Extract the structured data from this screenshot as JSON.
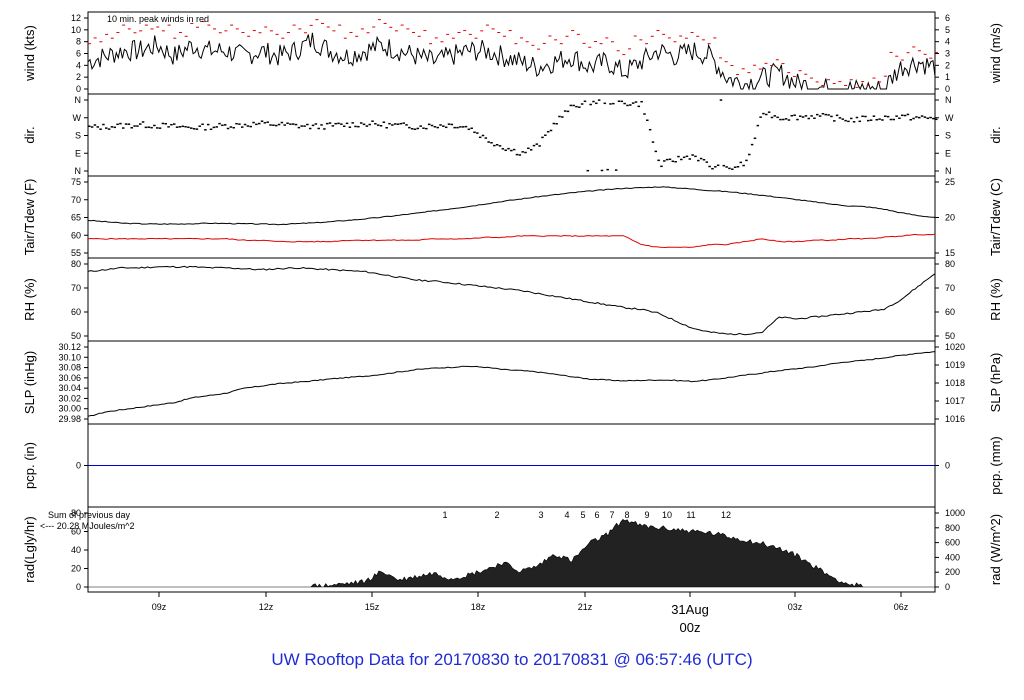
{
  "title": "UW Rooftop Data for 20170830  to  20170831 @ 06:57:46  (UTC)",
  "colors": {
    "peak": "#e00000",
    "dew": "#e00000",
    "pcp": "#0000cc",
    "rad_note": "#a020c0",
    "date": "#e00000",
    "title": "#1f2bd6"
  },
  "x_axis": {
    "ticks": [
      "09z",
      "12z",
      "15z",
      "18z",
      "21z",
      "03z",
      "06z"
    ],
    "date_label": "31Aug",
    "midnight_label": "00z"
  },
  "chart_data": [
    {
      "type": "line",
      "panel": "wind",
      "ylabel_left": "wind (kts)",
      "ylabel_right": "wind (m/s)",
      "yticks_left": [
        "0",
        "2",
        "4",
        "6",
        "8",
        "10",
        "12"
      ],
      "yticks_right": [
        "0",
        "1",
        "2",
        "3",
        "4",
        "5",
        "6"
      ],
      "ylim": [
        0,
        13
      ],
      "annotation": "10 min. peak winds in red",
      "series": [
        {
          "name": "wind",
          "values": [
            5,
            6,
            7,
            7,
            8,
            6,
            8,
            7,
            7,
            6,
            7,
            6,
            7,
            9,
            7,
            6,
            7,
            8,
            7,
            6,
            5,
            6,
            7,
            7,
            6,
            5,
            4,
            5,
            6,
            4,
            5,
            3,
            5,
            7,
            6,
            7,
            6,
            2,
            1,
            2,
            3,
            1,
            0.5,
            0,
            0,
            0,
            0,
            4,
            5,
            4
          ]
        },
        {
          "name": "peak",
          "values": [
            9,
            10,
            11,
            11,
            11,
            10,
            12,
            11,
            11,
            10,
            11,
            10,
            11,
            12,
            11,
            10,
            11,
            12,
            11,
            10,
            9,
            10,
            10,
            11,
            10,
            9,
            8,
            9,
            10,
            8,
            9,
            7,
            9,
            10,
            9,
            10,
            9,
            5,
            3,
            4,
            5,
            3,
            2,
            1,
            1,
            1,
            2,
            6,
            7,
            6
          ]
        }
      ]
    },
    {
      "type": "scatter",
      "panel": "dir",
      "ylabel_left": "dir.",
      "ylabel_right": "dir.",
      "yticks_left": [
        "N",
        "E",
        "S",
        "W",
        "N"
      ],
      "yticks_right": [
        "N",
        "E",
        "S",
        "W",
        "N"
      ],
      "series": [
        {
          "name": "direction",
          "values": [
            220,
            225,
            230,
            235,
            230,
            225,
            220,
            225,
            230,
            235,
            240,
            235,
            230,
            225,
            230,
            235,
            240,
            235,
            230,
            225,
            230,
            235,
            220,
            160,
            120,
            90,
            130,
            250,
            330,
            350,
            355,
            345,
            340,
            30,
            60,
            80,
            20,
            10,
            40,
            300,
            270,
            275,
            280,
            270,
            260,
            265,
            270,
            275,
            270,
            265
          ]
        }
      ]
    },
    {
      "type": "line",
      "panel": "temp",
      "ylabel_left": "Tair/Tdew (F)",
      "ylabel_right": "Tair/Tdew (C)",
      "yticks_left": [
        "55",
        "60",
        "65",
        "70",
        "75"
      ],
      "yticks_right": [
        "15",
        "20",
        "25"
      ],
      "ylim": [
        52,
        77
      ],
      "series": [
        {
          "name": "Tair",
          "values": [
            63.5,
            63,
            62.5,
            62.3,
            62.2,
            62.2,
            62.3,
            62.5,
            62.4,
            62.3,
            62.2,
            62.1,
            62.3,
            62.6,
            63,
            63.5,
            64,
            64.6,
            65.3,
            66,
            66.8,
            67.6,
            68.4,
            69.3,
            70.2,
            71,
            71.8,
            72.5,
            73.2,
            73.8,
            74.3,
            74.8,
            75,
            75.3,
            75,
            74.5,
            74,
            73.6,
            73,
            72.3,
            71.6,
            70.8,
            70,
            69.2,
            68.6,
            68.3,
            67.5,
            66.2,
            65.2,
            64.5
          ]
        },
        {
          "name": "Tdew",
          "values": [
            57,
            57,
            57,
            57,
            57,
            57,
            57,
            57,
            57,
            56.5,
            56.5,
            56,
            56,
            56,
            56,
            56.5,
            56.5,
            56.5,
            56.5,
            56.5,
            57,
            57,
            57,
            57.5,
            57.5,
            58,
            58,
            58,
            58,
            58,
            58,
            58,
            55,
            54,
            54,
            54,
            55,
            55,
            56,
            57,
            56,
            56,
            56.5,
            56.5,
            57,
            57,
            57.5,
            58,
            58.5,
            58.5
          ]
        }
      ]
    },
    {
      "type": "line",
      "panel": "rh",
      "ylabel_left": "RH (%)",
      "ylabel_right": "RH (%)",
      "yticks_left": [
        "50",
        "60",
        "70",
        "80"
      ],
      "yticks_right": [
        "50",
        "60",
        "70",
        "80"
      ],
      "ylim": [
        46,
        84
      ],
      "series": [
        {
          "name": "RH",
          "values": [
            80,
            81,
            82,
            82,
            82.5,
            82.5,
            82.5,
            82,
            82,
            81.5,
            81,
            81.5,
            82,
            81.5,
            81,
            80.5,
            80,
            78.5,
            77,
            75.5,
            75,
            74,
            73,
            72,
            71,
            70,
            68.5,
            67,
            65.5,
            64,
            62.5,
            61,
            60,
            58,
            54,
            50,
            48,
            47,
            47,
            48,
            56,
            55,
            56,
            57,
            58,
            59,
            60,
            65,
            72,
            79
          ]
        }
      ]
    },
    {
      "type": "line",
      "panel": "slp",
      "ylabel_left": "SLP (inHg)",
      "ylabel_right": "SLP (hPa)",
      "yticks_left": [
        "29.98",
        "30.00",
        "30.02",
        "30.04",
        "30.06",
        "30.08",
        "30.10",
        "30.12"
      ],
      "yticks_right": [
        "1016",
        "1017",
        "1018",
        "1019",
        "1020"
      ],
      "ylim": [
        29.975,
        30.128
      ],
      "series": [
        {
          "name": "SLP",
          "values": [
            29.98,
            29.99,
            29.995,
            30.0,
            30.005,
            30.01,
            30.02,
            30.025,
            30.03,
            30.04,
            30.045,
            30.05,
            30.053,
            30.056,
            30.06,
            30.063,
            30.066,
            30.07,
            30.075,
            30.08,
            30.083,
            30.085,
            30.087,
            30.085,
            30.08,
            30.078,
            30.075,
            30.07,
            30.065,
            30.06,
            30.058,
            30.056,
            30.057,
            30.058,
            30.057,
            30.055,
            30.058,
            30.063,
            30.068,
            30.073,
            30.078,
            30.082,
            30.086,
            30.092,
            30.097,
            30.1,
            30.105,
            30.11,
            30.115,
            30.118
          ]
        }
      ]
    },
    {
      "type": "line",
      "panel": "pcp",
      "ylabel_left": "pcp. (in)",
      "ylabel_right": "pcp. (mm)",
      "yticks_left": [
        "0"
      ],
      "yticks_right": [
        "0"
      ],
      "series": [
        {
          "name": "pcp",
          "values": [
            0,
            0
          ]
        }
      ]
    },
    {
      "type": "area",
      "panel": "rad",
      "ylabel_left": "rad(Lgly/hr)",
      "ylabel_right": "rad (W/m^2)",
      "yticks_left": [
        "0",
        "20",
        "40",
        "60",
        "80"
      ],
      "yticks_right": [
        "0",
        "200",
        "400",
        "600",
        "800",
        "1000"
      ],
      "ylim": [
        0,
        85
      ],
      "annotation": [
        "Sum of previous day",
        "<--- 20.28 MJoules/m^2"
      ],
      "hour_markers": [
        "1",
        "2",
        "3",
        "4",
        "5",
        "6",
        "7",
        "8",
        "9",
        "10",
        "11",
        "12"
      ],
      "series": [
        {
          "name": "rad",
          "values": [
            0,
            0,
            0,
            0,
            0,
            0,
            0,
            0,
            0,
            0,
            0,
            0,
            0.5,
            1,
            2,
            4,
            6,
            18,
            8,
            12,
            16,
            10,
            14,
            20,
            28,
            18,
            24,
            38,
            30,
            50,
            60,
            78,
            70,
            68,
            66,
            64,
            62,
            58,
            54,
            50,
            44,
            36,
            24,
            12,
            3,
            0.5,
            0,
            0,
            0,
            0
          ]
        }
      ]
    }
  ]
}
